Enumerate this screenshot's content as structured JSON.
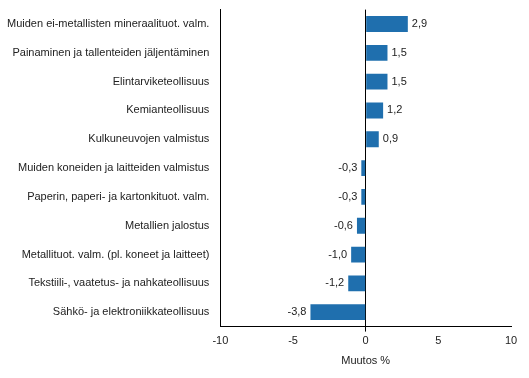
{
  "chart_data": {
    "type": "bar",
    "orientation": "horizontal",
    "categories": [
      "Muiden ei-metallisten mineraalituot. valm.",
      "Painaminen ja tallenteiden jäljentäminen",
      "Elintarviketeollisuus",
      "Kemianteollisuus",
      "Kulkuneuvojen valmistus",
      "Muiden koneiden ja laitteiden valmistus",
      "Paperin, paperi- ja kartonkituot. valm.",
      "Metallien jalostus",
      "Metallituot. valm. (pl. koneet ja laitteet)",
      "Tekstiili-, vaatetus- ja nahkateollisuus",
      "Sähkö- ja elektroniikkateollisuus"
    ],
    "values": [
      2.9,
      1.5,
      1.5,
      1.2,
      0.9,
      -0.3,
      -0.3,
      -0.6,
      -1.0,
      -1.2,
      -3.8
    ],
    "value_labels": [
      "2,9",
      "1,5",
      "1,5",
      "1,2",
      "0,9",
      "-0,3",
      "-0,3",
      "-0,6",
      "-1,0",
      "-1,2",
      "-3,8"
    ],
    "color": "#1f6fae",
    "x_label": "Muutos %",
    "xlim": [
      -10,
      10
    ],
    "xticks": [
      -10,
      -5,
      0,
      5,
      10
    ],
    "grid": false,
    "data_labels": true
  }
}
